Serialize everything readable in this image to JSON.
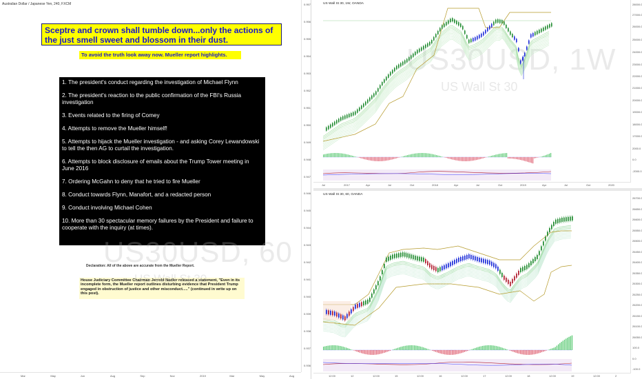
{
  "left_panel": {
    "title": "Australian Dollar / Japanese Yen, 240, FXCM",
    "headline": "Sceptre and crown shall tumble down...only the actions of the just smell sweet and blossom in their dust.",
    "subheadline": "To avoid the truth look away now. Mueller report highlights.",
    "list_items": [
      "1. The president's conduct regarding the investigation of Michael Flynn",
      "2. The president's reaction to the public confirmation of the FBI's Russia investigation",
      "3. Events related to the firing of Comey",
      "4. Attempts to remove the Mueller himself!",
      "5. Attempts to hijack the Mueller investigation - and asking Corey Lewandowski to tell the then AG to curtail the investigation.",
      "6. Attempts to block disclosure of emails about the Trump Tower meeting in June 2016",
      "7. Ordering McGahn to deny that he tried to fire Mueller",
      "8. Conduct towards Flynn, Manafort, and a redacted person",
      "9. Conduct involving Michael Cohen",
      " 10. More than 30 spectacular memory failures by the President and failure to cooperate with the inquiry (at times)."
    ],
    "declaration": "Declaration: All of the above are accurate from the Mueller Report.",
    "note": "House Judiciary Committee Chairman Jerrold Nadler released a statement, \"Even in its incomplete form, the Mueller report outlines disturbing evidence that President Trump engaged in obstruction of justice and other misconduct.....\" (continued in write up on this post).",
    "y_ticks": [
      "0.957",
      "0.956",
      "0.955",
      "0.954",
      "0.953",
      "0.952",
      "0.951",
      "0.950",
      "0.949",
      "0.948",
      "0.947",
      "0.946",
      "0.945",
      "0.944",
      "0.943",
      "0.942",
      "0.941",
      "0.940",
      "0.939",
      "0.938",
      "0.937",
      "0.936"
    ],
    "x_ticks": [
      "Mar",
      "May",
      "Jun",
      "Aug",
      "Sep",
      "Nov",
      "2019",
      "Mar",
      "May",
      "Aug"
    ]
  },
  "top_chart": {
    "title": "US Wall St 30, 1W, OANDA",
    "watermark_symbol": "US30USD, 1W",
    "watermark_name": "US Wall St 30",
    "y_ticks": [
      "28000.0",
      "27000.0",
      "26000.0",
      "25000.0",
      "24000.0",
      "23000.0",
      "22000.0",
      "21000.0",
      "20000.0",
      "19000.0",
      "18000.0",
      "17000.0",
      "2000.0",
      "0.0",
      "-2000.0"
    ],
    "x_ticks": [
      "Jul",
      "2017",
      "Apr",
      "Jul",
      "Oct",
      "2018",
      "Apr",
      "Jul",
      "Oct",
      "2019",
      "Apr",
      "Jul",
      "Oct",
      "2020"
    ]
  },
  "bottom_chart": {
    "title": "US Wall St 30, 60, OANDA",
    "watermark_symbol": "US30USD, 60",
    "watermark_name": "US Wall St 30",
    "y_ticks": [
      "26700.0",
      "26650.0",
      "26600.0",
      "26550.0",
      "26500.0",
      "26450.0",
      "26400.0",
      "26350.0",
      "26300.0",
      "26250.0",
      "26200.0",
      "26150.0",
      "26100.0",
      "26050.0",
      "100.0",
      "0.0",
      "-100.0"
    ],
    "x_ticks": [
      "12:00",
      "12",
      "12:00",
      "15",
      "12:00",
      "16",
      "12:00",
      "17",
      "12:00",
      "18",
      "12:00",
      "19",
      "12:00",
      "2"
    ]
  },
  "colors": {
    "headline_bg": "#ffff00",
    "headline_text": "#1717c9",
    "list_bg": "#000000",
    "note_bg": "#fffbd0",
    "bull_candle": "#1e8a2e",
    "bear_candle": "#b01c2e",
    "blue_candle": "#1a2ad8",
    "channel": "#b59a2a"
  }
}
